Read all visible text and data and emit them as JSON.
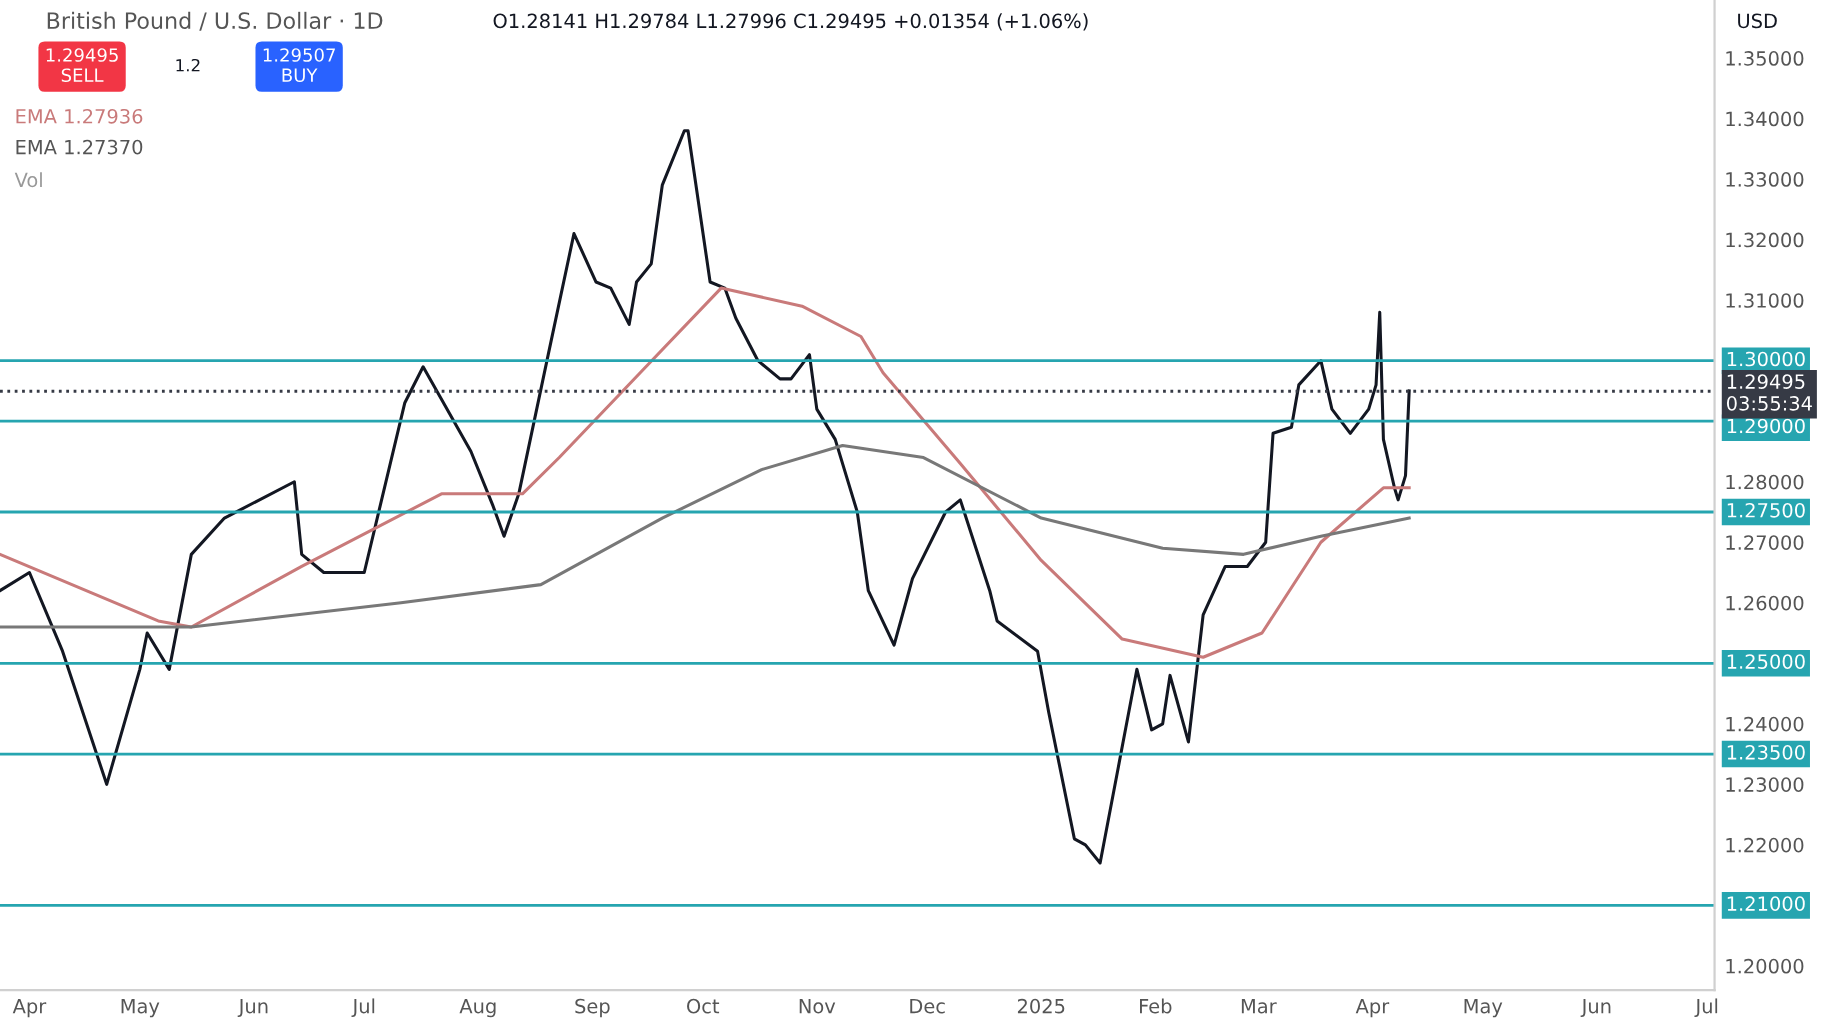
{
  "chart_data": {
    "type": "line",
    "title": "British Pound / U.S. Dollar · 1D",
    "annotations": [
      "O1.28141 H1.29784 L1.27996 C1.29495 +0.01354 (+1.06%)",
      "1.29495\nSELL",
      "1.2",
      "1.29507\nBUY",
      "EMA 1.27936",
      "EMA 1.27370",
      "Vol",
      "USD"
    ],
    "series": [
      {
        "color": "#131722",
        "x": [
          "2024-03-24",
          "2024-04-01",
          "2024-04-10",
          "2024-04-22",
          "2024-05-01",
          "2024-05-03",
          "2024-05-09",
          "2024-05-15",
          "2024-05-24",
          "2024-06-12",
          "2024-06-14",
          "2024-06-20",
          "2024-07-01",
          "2024-07-12",
          "2024-07-17",
          "2024-07-30",
          "2024-08-05",
          "2024-08-08",
          "2024-08-12",
          "2024-08-20",
          "2024-08-27",
          "2024-09-02",
          "2024-09-06",
          "2024-09-11",
          "2024-09-13",
          "2024-09-17",
          "2024-09-20",
          "2024-09-26",
          "2024-09-27",
          "2024-10-03",
          "2024-10-07",
          "2024-10-10",
          "2024-10-16",
          "2024-10-22",
          "2024-10-25",
          "2024-10-30",
          "2024-11-01",
          "2024-11-06",
          "2024-11-12",
          "2024-11-15",
          "2024-11-22",
          "2024-11-27",
          "2024-12-06",
          "2024-12-10",
          "2024-12-18",
          "2024-12-20",
          "2024-12-31",
          "2025-01-03",
          "2025-01-10",
          "2025-01-13",
          "2025-01-17",
          "2025-01-22",
          "2025-01-27",
          "2025-01-31",
          "2025-02-03",
          "2025-02-05",
          "2025-02-10",
          "2025-02-14",
          "2025-02-20",
          "2025-02-26",
          "2025-03-03",
          "2025-03-05",
          "2025-03-10",
          "2025-03-12",
          "2025-03-18",
          "2025-03-21",
          "2025-03-26",
          "2025-03-31",
          "2025-04-02",
          "2025-04-03",
          "2025-04-04",
          "2025-04-07",
          "2025-04-08",
          "2025-04-10",
          "2025-04-11"
        ],
        "values": [
          1.262,
          1.265,
          1.252,
          1.23,
          1.249,
          1.255,
          1.249,
          1.268,
          1.274,
          1.28,
          1.268,
          1.265,
          1.265,
          1.293,
          1.299,
          1.285,
          1.276,
          1.271,
          1.278,
          1.301,
          1.321,
          1.313,
          1.312,
          1.306,
          1.313,
          1.316,
          1.329,
          1.338,
          1.338,
          1.313,
          1.312,
          1.307,
          1.3,
          1.297,
          1.297,
          1.301,
          1.292,
          1.287,
          1.275,
          1.262,
          1.253,
          1.264,
          1.275,
          1.277,
          1.262,
          1.257,
          1.252,
          1.242,
          1.221,
          1.22,
          1.217,
          1.233,
          1.249,
          1.239,
          1.24,
          1.248,
          1.237,
          1.258,
          1.266,
          1.266,
          1.27,
          1.288,
          1.289,
          1.296,
          1.3,
          1.292,
          1.288,
          1.292,
          1.296,
          1.308,
          1.287,
          1.279,
          1.277,
          1.281,
          1.295
        ]
      },
      {
        "color": "#c97a7a",
        "x": [
          "2024-03-24",
          "2024-05-06",
          "2024-05-15",
          "2024-06-14",
          "2024-07-22",
          "2024-08-13",
          "2024-08-23",
          "2024-09-14",
          "2024-10-06",
          "2024-10-28",
          "2024-11-13",
          "2024-11-19",
          "2024-12-10",
          "2025-01-01",
          "2025-01-23",
          "2025-02-14",
          "2025-03-02",
          "2025-03-18",
          "2025-04-04",
          "2025-04-11"
        ],
        "values": [
          1.268,
          1.257,
          1.256,
          1.266,
          1.278,
          1.278,
          1.284,
          1.298,
          1.312,
          1.309,
          1.304,
          1.298,
          1.283,
          1.267,
          1.254,
          1.251,
          1.255,
          1.27,
          1.279,
          1.279
        ]
      },
      {
        "color": "#787878",
        "x": [
          "2024-03-24",
          "2024-05-15",
          "2024-07-11",
          "2024-08-18",
          "2024-09-20",
          "2024-10-17",
          "2024-11-08",
          "2024-11-30",
          "2025-01-01",
          "2025-02-03",
          "2025-02-25",
          "2025-03-18",
          "2025-04-11"
        ],
        "values": [
          1.256,
          1.256,
          1.26,
          1.263,
          1.274,
          1.282,
          1.286,
          1.284,
          1.274,
          1.269,
          1.268,
          1.271,
          1.274
        ]
      }
    ],
    "xlim": [
      "2024-03-24",
      "2025-07-03"
    ],
    "xticks": [
      {
        "value": "2024-04-01",
        "label": "Apr"
      },
      {
        "value": "2024-05-01",
        "label": "May"
      },
      {
        "value": "2024-06-01",
        "label": "Jun"
      },
      {
        "value": "2024-07-01",
        "label": "Jul"
      },
      {
        "value": "2024-08-01",
        "label": "Aug"
      },
      {
        "value": "2024-09-01",
        "label": "Sep"
      },
      {
        "value": "2024-10-01",
        "label": "Oct"
      },
      {
        "value": "2024-11-01",
        "label": "Nov"
      },
      {
        "value": "2024-12-01",
        "label": "Dec"
      },
      {
        "value": "2025-01-01",
        "label": "2025"
      },
      {
        "value": "2025-02-01",
        "label": "Feb"
      },
      {
        "value": "2025-03-01",
        "label": "Mar"
      },
      {
        "value": "2025-04-01",
        "label": "Apr"
      },
      {
        "value": "2025-05-01",
        "label": "May"
      },
      {
        "value": "2025-06-01",
        "label": "Jun"
      },
      {
        "value": "2025-07-01",
        "label": "Jul"
      }
    ],
    "ylim": [
      1.196,
      1.3596
    ],
    "yticks": [
      {
        "value": 1.2,
        "label": "1.20000"
      },
      {
        "value": 1.22,
        "label": "1.22000"
      },
      {
        "value": 1.23,
        "label": "1.23000"
      },
      {
        "value": 1.24,
        "label": "1.24000"
      },
      {
        "value": 1.26,
        "label": "1.26000"
      },
      {
        "value": 1.27,
        "label": "1.27000"
      },
      {
        "value": 1.28,
        "label": "1.28000"
      },
      {
        "value": 1.31,
        "label": "1.31000"
      },
      {
        "value": 1.32,
        "label": "1.32000"
      },
      {
        "value": 1.33,
        "label": "1.33000"
      },
      {
        "value": 1.34,
        "label": "1.34000"
      },
      {
        "value": 1.35,
        "label": "1.35000"
      }
    ],
    "ref_lines": [
      {
        "axis": "y",
        "value": 1.3,
        "label": "1.30000",
        "color": "#26a5b0"
      },
      {
        "axis": "y",
        "value": 1.29,
        "label": "1.29000",
        "color": "#26a5b0"
      },
      {
        "axis": "y",
        "value": 1.275,
        "label": "1.27500",
        "color": "#26a5b0"
      },
      {
        "axis": "y",
        "value": 1.25,
        "label": "1.25000",
        "color": "#26a5b0"
      },
      {
        "axis": "y",
        "value": 1.235,
        "label": "1.23500",
        "color": "#26a5b0"
      },
      {
        "axis": "y",
        "value": 1.21,
        "label": "1.21000",
        "color": "#26a5b0"
      },
      {
        "axis": "y",
        "value": 1.29495,
        "label": "1.29495\n03:55:34",
        "color": "#363a45",
        "line_style": "dotted"
      }
    ],
    "grid": false,
    "legend": false
  }
}
